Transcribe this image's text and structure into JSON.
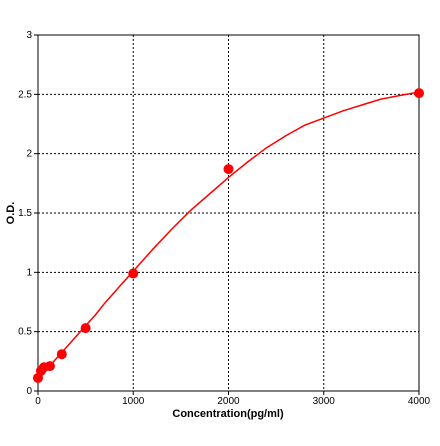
{
  "chart_data": {
    "type": "scatter",
    "title": "",
    "xlabel": "Concentration(pg/ml)",
    "ylabel": "O.D.",
    "xlim": [
      0,
      4000
    ],
    "ylim": [
      0,
      3
    ],
    "x_ticks": [
      0,
      1000,
      2000,
      3000,
      4000
    ],
    "y_ticks": [
      0,
      0.5,
      1,
      1.5,
      2,
      2.5,
      3
    ],
    "grid": true,
    "grid_style": "dotted",
    "legend": "none",
    "series": [
      {
        "kind": "points",
        "color": "#ff0000",
        "x": [
          0,
          31.25,
          62.5,
          125,
          250,
          500,
          1000,
          2000,
          4000
        ],
        "y": [
          0.11,
          0.17,
          0.2,
          0.21,
          0.31,
          0.53,
          0.99,
          1.87,
          2.51
        ]
      },
      {
        "kind": "fitted-curve",
        "color": "#ff0000",
        "x": [
          0,
          50,
          100,
          200,
          300,
          400,
          500,
          600,
          700,
          800,
          900,
          1000,
          1200,
          1400,
          1600,
          1800,
          2000,
          2200,
          2400,
          2600,
          2800,
          3000,
          3200,
          3400,
          3600,
          3800,
          4000
        ],
        "y": [
          0.13,
          0.16,
          0.19,
          0.28,
          0.37,
          0.46,
          0.55,
          0.64,
          0.74,
          0.83,
          0.92,
          1.01,
          1.19,
          1.36,
          1.52,
          1.66,
          1.8,
          1.93,
          2.05,
          2.15,
          2.24,
          2.3,
          2.36,
          2.41,
          2.46,
          2.49,
          2.52
        ]
      }
    ]
  }
}
